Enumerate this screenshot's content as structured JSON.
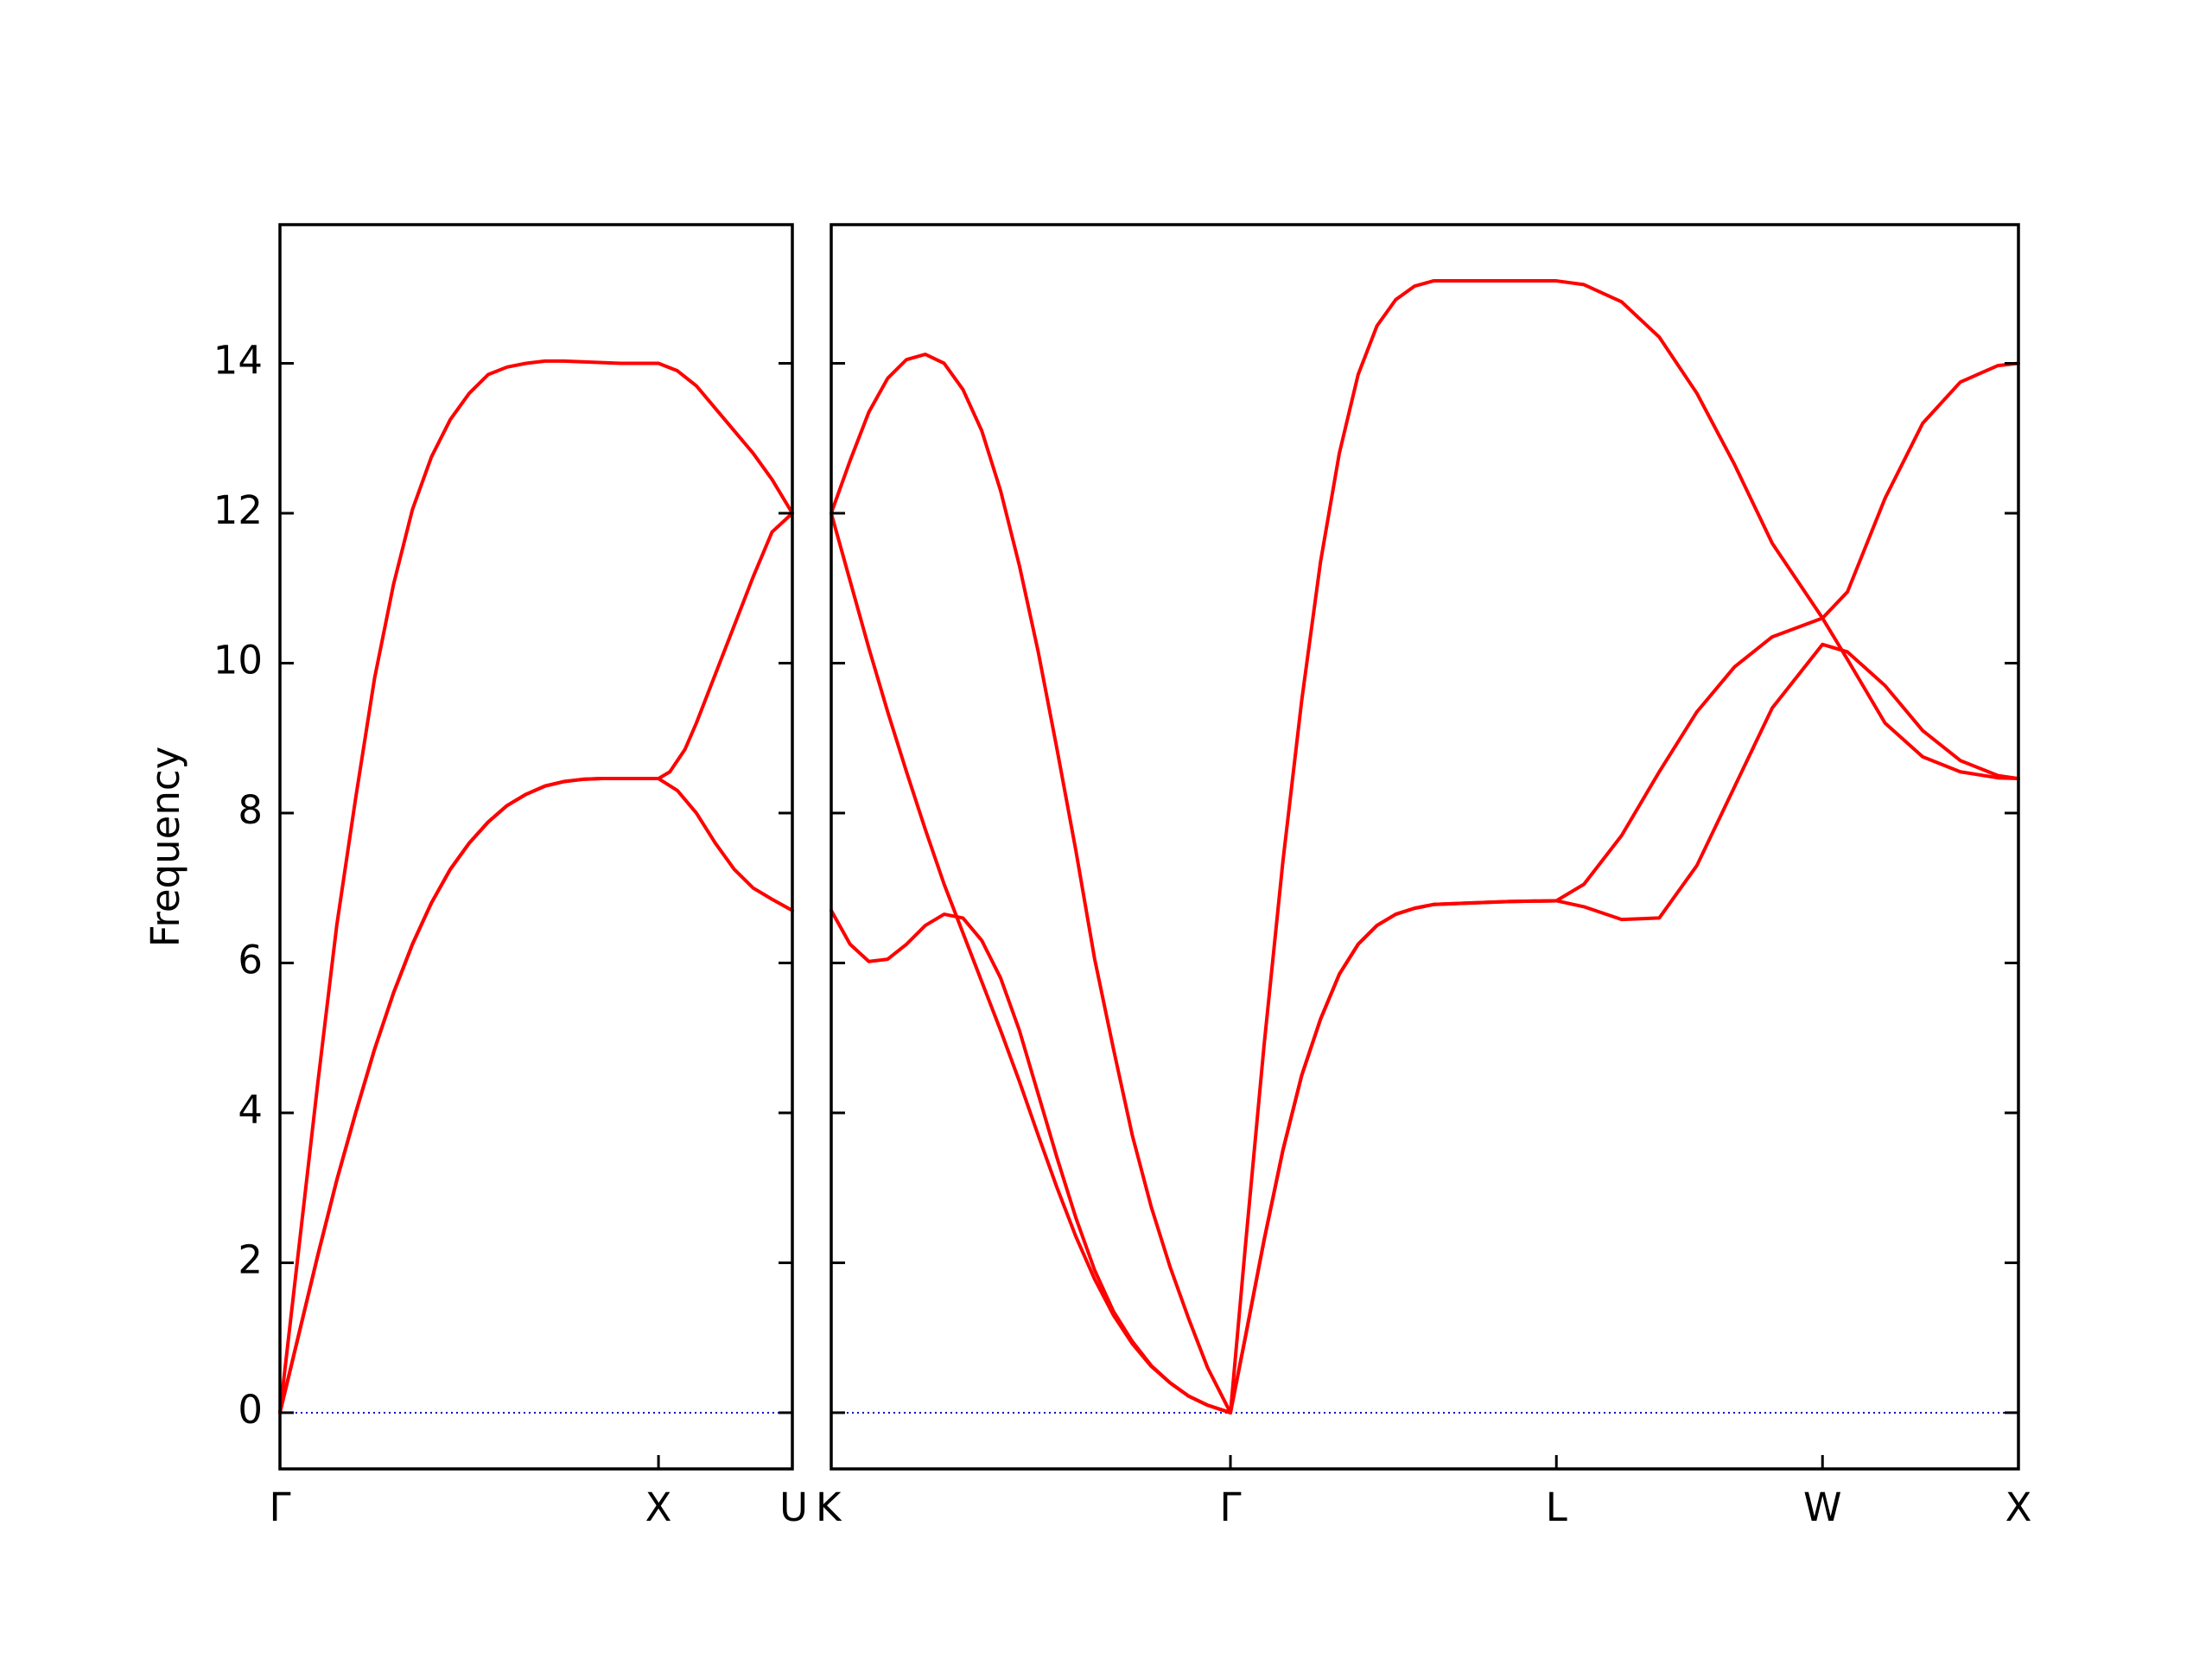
{
  "chart_data": {
    "type": "line",
    "title": "",
    "xlabel": "",
    "ylabel": "Frequency",
    "ylim": [
      -0.75,
      15.85
    ],
    "grid": false,
    "legend": "none",
    "yticks": [
      0,
      2,
      4,
      6,
      8,
      10,
      12,
      14
    ],
    "colors": {
      "band": "#ff0000",
      "zero_line": "#0000cc"
    },
    "panels": [
      {
        "x_range": [
          0,
          1.3536
        ],
        "ticks": [
          {
            "label": "Γ",
            "x": 0
          },
          {
            "label": "X",
            "x": 1.0
          },
          {
            "label": "U",
            "x": 1.3536
          }
        ],
        "series": [
          {
            "points": [
              [
                0,
                0
              ],
              [
                0.05,
                2.2
              ],
              [
                0.1,
                4.4
              ],
              [
                0.15,
                6.5
              ],
              [
                0.2,
                8.2
              ],
              [
                0.25,
                9.8
              ],
              [
                0.3,
                11.05
              ],
              [
                0.35,
                12.05
              ],
              [
                0.4,
                12.75
              ],
              [
                0.45,
                13.25
              ],
              [
                0.5,
                13.6
              ],
              [
                0.55,
                13.85
              ],
              [
                0.6,
                13.95
              ],
              [
                0.65,
                14.0
              ],
              [
                0.7,
                14.03
              ],
              [
                0.75,
                14.03
              ],
              [
                0.8,
                14.02
              ],
              [
                0.85,
                14.01
              ],
              [
                0.9,
                14.0
              ],
              [
                0.95,
                14.0
              ],
              [
                1.0,
                14.0
              ],
              [
                1.05,
                13.9
              ],
              [
                1.1,
                13.7
              ],
              [
                1.15,
                13.4
              ],
              [
                1.2,
                13.1
              ],
              [
                1.25,
                12.8
              ],
              [
                1.3,
                12.45
              ],
              [
                1.3536,
                12.0
              ]
            ]
          },
          {
            "points": [
              [
                0,
                0
              ],
              [
                0.05,
                1.05
              ],
              [
                0.1,
                2.1
              ],
              [
                0.15,
                3.1
              ],
              [
                0.2,
                4.0
              ],
              [
                0.25,
                4.85
              ],
              [
                0.3,
                5.6
              ],
              [
                0.35,
                6.25
              ],
              [
                0.4,
                6.8
              ],
              [
                0.45,
                7.25
              ],
              [
                0.5,
                7.6
              ],
              [
                0.55,
                7.88
              ],
              [
                0.6,
                8.1
              ],
              [
                0.65,
                8.25
              ],
              [
                0.7,
                8.36
              ],
              [
                0.75,
                8.42
              ],
              [
                0.8,
                8.45
              ],
              [
                0.85,
                8.46
              ],
              [
                0.9,
                8.46
              ],
              [
                0.95,
                8.46
              ],
              [
                1.0,
                8.46
              ],
              [
                1.03,
                8.55
              ],
              [
                1.07,
                8.85
              ],
              [
                1.1,
                9.2
              ],
              [
                1.15,
                9.85
              ],
              [
                1.2,
                10.5
              ],
              [
                1.25,
                11.15
              ],
              [
                1.3,
                11.75
              ],
              [
                1.3536,
                12.0
              ]
            ]
          },
          {
            "points": [
              [
                0,
                0
              ],
              [
                0.05,
                1.05
              ],
              [
                0.1,
                2.1
              ],
              [
                0.15,
                3.1
              ],
              [
                0.2,
                4.0
              ],
              [
                0.25,
                4.85
              ],
              [
                0.3,
                5.6
              ],
              [
                0.35,
                6.25
              ],
              [
                0.4,
                6.8
              ],
              [
                0.45,
                7.25
              ],
              [
                0.5,
                7.6
              ],
              [
                0.55,
                7.88
              ],
              [
                0.6,
                8.1
              ],
              [
                0.65,
                8.25
              ],
              [
                0.7,
                8.36
              ],
              [
                0.75,
                8.42
              ],
              [
                0.8,
                8.45
              ],
              [
                0.85,
                8.46
              ],
              [
                0.9,
                8.46
              ],
              [
                0.95,
                8.46
              ],
              [
                1.0,
                8.46
              ],
              [
                1.05,
                8.3
              ],
              [
                1.1,
                8.0
              ],
              [
                1.15,
                7.6
              ],
              [
                1.2,
                7.25
              ],
              [
                1.25,
                7.0
              ],
              [
                1.3,
                6.85
              ],
              [
                1.3536,
                6.7
              ]
            ]
          }
        ]
      },
      {
        "x_range": [
          0,
          3.1544
        ],
        "ticks": [
          {
            "label": "K",
            "x": 0
          },
          {
            "label": "Γ",
            "x": 1.0607
          },
          {
            "label": "L",
            "x": 1.9267
          },
          {
            "label": "W",
            "x": 2.6338
          },
          {
            "label": "X",
            "x": 3.1544
          }
        ],
        "series": [
          {
            "points": [
              [
                0,
                12.0
              ],
              [
                0.05,
                12.7
              ],
              [
                0.1,
                13.35
              ],
              [
                0.15,
                13.8
              ],
              [
                0.2,
                14.05
              ],
              [
                0.25,
                14.12
              ],
              [
                0.3,
                14.0
              ],
              [
                0.35,
                13.65
              ],
              [
                0.4,
                13.1
              ],
              [
                0.45,
                12.3
              ],
              [
                0.5,
                11.3
              ],
              [
                0.55,
                10.15
              ],
              [
                0.6,
                8.85
              ],
              [
                0.65,
                7.5
              ],
              [
                0.7,
                6.05
              ],
              [
                0.75,
                4.85
              ],
              [
                0.8,
                3.7
              ],
              [
                0.85,
                2.75
              ],
              [
                0.9,
                1.95
              ],
              [
                0.95,
                1.25
              ],
              [
                1.0,
                0.6
              ],
              [
                1.0607,
                0
              ]
            ]
          },
          {
            "points": [
              [
                0,
                12.0
              ],
              [
                0.05,
                11.1
              ],
              [
                0.1,
                10.2
              ],
              [
                0.15,
                9.35
              ],
              [
                0.2,
                8.55
              ],
              [
                0.25,
                7.78
              ],
              [
                0.3,
                7.05
              ],
              [
                0.35,
                6.4
              ],
              [
                0.4,
                5.75
              ],
              [
                0.45,
                5.1
              ],
              [
                0.5,
                4.42
              ],
              [
                0.55,
                3.7
              ],
              [
                0.6,
                3.0
              ],
              [
                0.65,
                2.35
              ],
              [
                0.7,
                1.78
              ],
              [
                0.75,
                1.3
              ],
              [
                0.8,
                0.92
              ],
              [
                0.85,
                0.62
              ],
              [
                0.9,
                0.4
              ],
              [
                0.95,
                0.22
              ],
              [
                1.0,
                0.1
              ],
              [
                1.0607,
                0
              ]
            ]
          },
          {
            "points": [
              [
                0,
                6.7
              ],
              [
                0.05,
                6.25
              ],
              [
                0.1,
                6.02
              ],
              [
                0.15,
                6.05
              ],
              [
                0.2,
                6.25
              ],
              [
                0.25,
                6.5
              ],
              [
                0.3,
                6.65
              ],
              [
                0.35,
                6.6
              ],
              [
                0.4,
                6.3
              ],
              [
                0.45,
                5.8
              ],
              [
                0.5,
                5.1
              ],
              [
                0.55,
                4.25
              ],
              [
                0.6,
                3.4
              ],
              [
                0.65,
                2.6
              ],
              [
                0.7,
                1.9
              ],
              [
                0.75,
                1.35
              ],
              [
                0.8,
                0.95
              ],
              [
                0.85,
                0.63
              ],
              [
                0.9,
                0.4
              ],
              [
                0.95,
                0.22
              ],
              [
                1.0,
                0.1
              ],
              [
                1.0607,
                0
              ]
            ]
          },
          {
            "points": [
              [
                1.0607,
                0
              ],
              [
                1.1,
                2.2
              ],
              [
                1.15,
                4.9
              ],
              [
                1.2,
                7.35
              ],
              [
                1.25,
                9.5
              ],
              [
                1.3,
                11.35
              ],
              [
                1.35,
                12.8
              ],
              [
                1.4,
                13.85
              ],
              [
                1.45,
                14.5
              ],
              [
                1.5,
                14.85
              ],
              [
                1.55,
                15.03
              ],
              [
                1.6,
                15.1
              ],
              [
                1.7,
                15.1
              ],
              [
                1.8,
                15.1
              ],
              [
                1.9267,
                15.1
              ],
              [
                2.0,
                15.05
              ],
              [
                2.1,
                14.82
              ],
              [
                2.2,
                14.35
              ],
              [
                2.3,
                13.6
              ],
              [
                2.4,
                12.65
              ],
              [
                2.5,
                11.6
              ],
              [
                2.6338,
                10.6
              ],
              [
                2.7,
                10.95
              ],
              [
                2.8,
                12.2
              ],
              [
                2.9,
                13.2
              ],
              [
                3.0,
                13.75
              ],
              [
                3.1,
                13.97
              ],
              [
                3.1544,
                14.0
              ]
            ]
          },
          {
            "points": [
              [
                1.0607,
                0
              ],
              [
                1.1,
                1.0
              ],
              [
                1.15,
                2.3
              ],
              [
                1.2,
                3.5
              ],
              [
                1.25,
                4.5
              ],
              [
                1.3,
                5.25
              ],
              [
                1.35,
                5.85
              ],
              [
                1.4,
                6.25
              ],
              [
                1.45,
                6.5
              ],
              [
                1.5,
                6.65
              ],
              [
                1.55,
                6.73
              ],
              [
                1.6,
                6.78
              ],
              [
                1.7,
                6.8
              ],
              [
                1.8,
                6.82
              ],
              [
                1.9267,
                6.83
              ],
              [
                2.0,
                7.05
              ],
              [
                2.1,
                7.7
              ],
              [
                2.2,
                8.55
              ],
              [
                2.3,
                9.35
              ],
              [
                2.4,
                9.95
              ],
              [
                2.5,
                10.35
              ],
              [
                2.6338,
                10.6
              ],
              [
                2.7,
                10.05
              ],
              [
                2.8,
                9.2
              ],
              [
                2.9,
                8.75
              ],
              [
                3.0,
                8.55
              ],
              [
                3.1,
                8.47
              ],
              [
                3.1544,
                8.46
              ]
            ]
          },
          {
            "points": [
              [
                1.0607,
                0
              ],
              [
                1.1,
                1.0
              ],
              [
                1.15,
                2.3
              ],
              [
                1.2,
                3.5
              ],
              [
                1.25,
                4.5
              ],
              [
                1.3,
                5.25
              ],
              [
                1.35,
                5.85
              ],
              [
                1.4,
                6.25
              ],
              [
                1.45,
                6.5
              ],
              [
                1.5,
                6.65
              ],
              [
                1.55,
                6.73
              ],
              [
                1.6,
                6.78
              ],
              [
                1.7,
                6.8
              ],
              [
                1.8,
                6.82
              ],
              [
                1.9267,
                6.83
              ],
              [
                2.0,
                6.75
              ],
              [
                2.1,
                6.58
              ],
              [
                2.2,
                6.6
              ],
              [
                2.3,
                7.3
              ],
              [
                2.4,
                8.35
              ],
              [
                2.5,
                9.4
              ],
              [
                2.6338,
                10.25
              ],
              [
                2.7,
                10.15
              ],
              [
                2.8,
                9.7
              ],
              [
                2.9,
                9.1
              ],
              [
                3.0,
                8.7
              ],
              [
                3.1,
                8.5
              ],
              [
                3.1544,
                8.46
              ]
            ]
          }
        ]
      }
    ]
  }
}
